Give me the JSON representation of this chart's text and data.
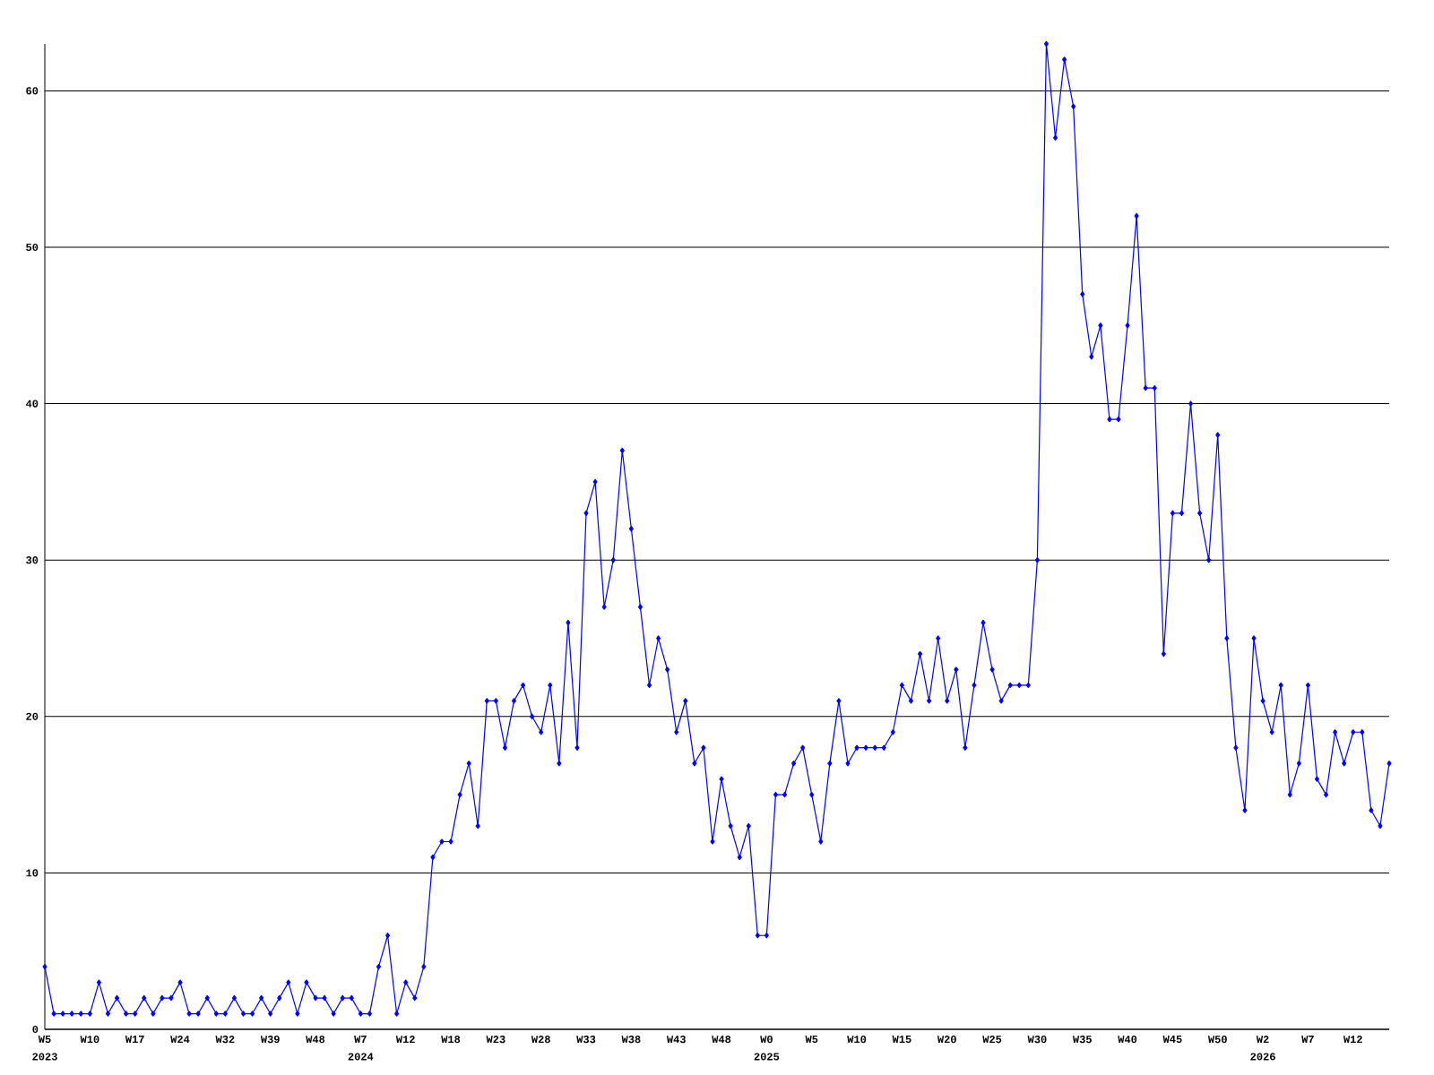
{
  "chart_data": {
    "type": "line",
    "color": "#0000ff",
    "marker": "diamond",
    "line_style": "solid",
    "grid": "y",
    "ylim": [
      0,
      63
    ],
    "yticks": [
      0,
      10,
      20,
      30,
      40,
      50,
      60
    ],
    "categories": [
      "W5",
      null,
      null,
      null,
      null,
      "W10",
      null,
      null,
      null,
      null,
      "W17",
      null,
      null,
      null,
      null,
      "W24",
      null,
      null,
      null,
      null,
      "W32",
      null,
      null,
      null,
      null,
      "W39",
      null,
      null,
      null,
      null,
      "W48",
      null,
      null,
      null,
      null,
      "W7",
      null,
      null,
      null,
      null,
      "W12",
      null,
      null,
      null,
      null,
      "W18",
      null,
      null,
      null,
      null,
      "W23",
      null,
      null,
      null,
      null,
      "W28",
      null,
      null,
      null,
      null,
      "W33",
      null,
      null,
      null,
      null,
      "W38",
      null,
      null,
      null,
      null,
      "W43",
      null,
      null,
      null,
      null,
      "W48",
      null,
      null,
      null,
      null,
      "W0",
      null,
      null,
      null,
      null,
      "W5",
      null,
      null,
      null,
      null,
      "W10",
      null,
      null,
      null,
      null,
      "W15",
      null,
      null,
      null,
      null,
      "W20",
      null,
      null,
      null,
      null,
      "W25",
      null,
      null,
      null,
      null,
      "W30",
      null,
      null,
      null,
      null,
      "W35",
      null,
      null,
      null,
      null,
      "W40",
      null,
      null,
      null,
      null,
      "W45",
      null,
      null,
      null,
      null,
      "W50",
      null,
      null,
      null,
      null,
      "W2",
      null,
      null,
      null,
      null,
      "W7",
      null,
      null,
      null,
      null,
      "W12",
      null,
      null,
      null,
      null
    ],
    "values": [
      4,
      1,
      1,
      1,
      1,
      1,
      3,
      1,
      2,
      1,
      1,
      2,
      1,
      2,
      2,
      3,
      1,
      1,
      2,
      1,
      1,
      2,
      1,
      1,
      2,
      1,
      2,
      3,
      1,
      3,
      2,
      2,
      1,
      2,
      2,
      1,
      1,
      4,
      6,
      1,
      3,
      2,
      4,
      11,
      12,
      12,
      15,
      17,
      13,
      21,
      21,
      18,
      21,
      22,
      20,
      19,
      22,
      17,
      26,
      18,
      33,
      35,
      27,
      30,
      37,
      32,
      27,
      22,
      25,
      23,
      19,
      21,
      17,
      18,
      12,
      16,
      13,
      11,
      13,
      6,
      6,
      15,
      15,
      17,
      18,
      15,
      12,
      17,
      21,
      17,
      18,
      18,
      18,
      18,
      19,
      22,
      21,
      24,
      21,
      25,
      21,
      23,
      18,
      22,
      26,
      23,
      21,
      22,
      22,
      22,
      30,
      63,
      57,
      62,
      59,
      47,
      43,
      45,
      39,
      39,
      45,
      52,
      41,
      41,
      24,
      33,
      33,
      40,
      33,
      30,
      38,
      25,
      18,
      14,
      25,
      21,
      19,
      22,
      15,
      17,
      22,
      16,
      15,
      19,
      17,
      19,
      19,
      14,
      13,
      17
    ],
    "annotations": [
      "2023",
      "2024",
      "2025",
      "2026"
    ]
  }
}
